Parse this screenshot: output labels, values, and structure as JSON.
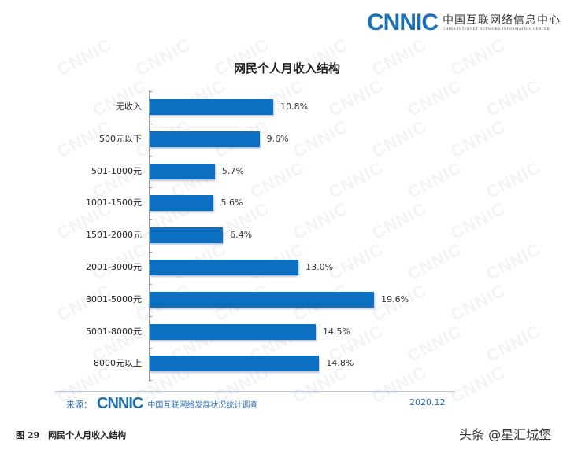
{
  "header": {
    "logo_word": "CNNIC",
    "logo_cn": "中国互联网络信息中心",
    "logo_en": "CHINA INTERNET NETWORK INFORMATION CENTER"
  },
  "chart_data": {
    "type": "bar",
    "orientation": "horizontal",
    "title": "网民个人月收入结构",
    "categories": [
      "无收入",
      "500元以下",
      "501-1000元",
      "1001-1500元",
      "1501-2000元",
      "2001-3000元",
      "3001-5000元",
      "5001-8000元",
      "8000元以上"
    ],
    "values": [
      10.8,
      9.6,
      5.7,
      5.6,
      6.4,
      13.0,
      19.6,
      14.5,
      14.8
    ],
    "value_labels": [
      "10.8%",
      "9.6%",
      "5.7%",
      "5.6%",
      "6.4%",
      "13.0%",
      "19.6%",
      "14.5%",
      "14.8%"
    ],
    "unit": "%",
    "xlabel": "",
    "ylabel": "",
    "grid": false,
    "legend": null,
    "bar_color": "#0d6fc2"
  },
  "footer": {
    "source_label": "来源：",
    "source_logo": "CNNIC",
    "source_desc": "中国互联网络发展状况统计调查",
    "date": "2020.12"
  },
  "caption": "图 29　网民个人月收入结构",
  "credit": "头条 @星汇城堡",
  "watermark_text": "CNNIC"
}
